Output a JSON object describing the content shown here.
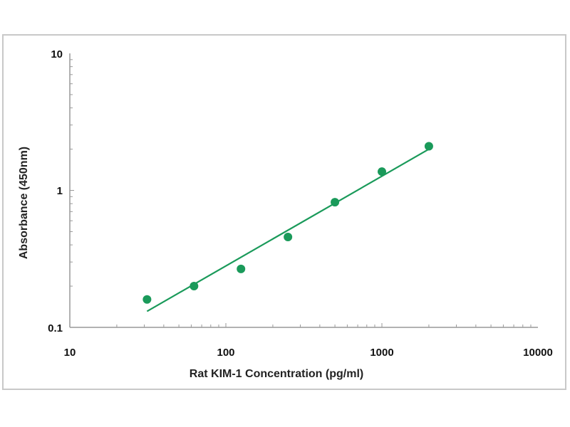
{
  "chart_data": {
    "type": "scatter",
    "title": "",
    "xlabel": "Rat KIM-1 Concentration (pg/ml)",
    "ylabel": "Absorbance (450nm)",
    "xscale": "log",
    "yscale": "log",
    "xlim": [
      10,
      10000
    ],
    "ylim": [
      0.1,
      10
    ],
    "xticks": [
      "10",
      "100",
      "1000",
      "10000"
    ],
    "yticks": [
      "0.1",
      "1",
      "10"
    ],
    "grid": false,
    "series": [
      {
        "name": "standards",
        "x": [
          31.25,
          62.5,
          125,
          250,
          500,
          1000,
          2000
        ],
        "y": [
          0.16,
          0.2,
          0.267,
          0.457,
          0.82,
          1.37,
          2.1
        ]
      },
      {
        "name": "fit",
        "x": [
          31.25,
          2000
        ],
        "y": [
          0.131,
          2.0
        ]
      }
    ],
    "color": "#1a9a5a"
  }
}
